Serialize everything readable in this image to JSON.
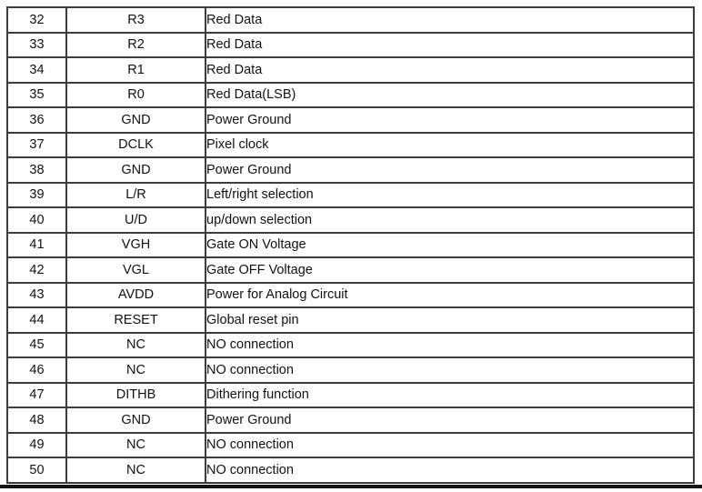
{
  "colors": {
    "background": "#ffffff",
    "border": "#3d3d3d",
    "text": "#111111",
    "bottom_rule": "#141414"
  },
  "pin_table": {
    "columns": [
      "pin_number",
      "symbol",
      "description"
    ],
    "rows": [
      {
        "pin": "32",
        "symbol": "R3",
        "description": "Red Data"
      },
      {
        "pin": "33",
        "symbol": "R2",
        "description": "Red Data"
      },
      {
        "pin": "34",
        "symbol": "R1",
        "description": "Red Data"
      },
      {
        "pin": "35",
        "symbol": "R0",
        "description": "Red Data(LSB)"
      },
      {
        "pin": "36",
        "symbol": "GND",
        "description": "Power Ground"
      },
      {
        "pin": "37",
        "symbol": "DCLK",
        "description": "Pixel clock"
      },
      {
        "pin": "38",
        "symbol": "GND",
        "description": "Power Ground"
      },
      {
        "pin": "39",
        "symbol": "L/R",
        "description": "Left/right selection"
      },
      {
        "pin": "40",
        "symbol": "U/D",
        "description": "up/down selection"
      },
      {
        "pin": "41",
        "symbol": "VGH",
        "description": "Gate ON Voltage"
      },
      {
        "pin": "42",
        "symbol": "VGL",
        "description": "Gate OFF Voltage"
      },
      {
        "pin": "43",
        "symbol": "AVDD",
        "description": "Power for Analog Circuit"
      },
      {
        "pin": "44",
        "symbol": "RESET",
        "description": "Global reset pin"
      },
      {
        "pin": "45",
        "symbol": "NC",
        "description": "NO connection"
      },
      {
        "pin": "46",
        "symbol": "NC",
        "description": "NO connection"
      },
      {
        "pin": "47",
        "symbol": "DITHB",
        "description": "Dithering function"
      },
      {
        "pin": "48",
        "symbol": "GND",
        "description": "Power Ground"
      },
      {
        "pin": "49",
        "symbol": "NC",
        "description": "NO connection"
      },
      {
        "pin": "50",
        "symbol": "NC",
        "description": "NO connection"
      }
    ]
  }
}
